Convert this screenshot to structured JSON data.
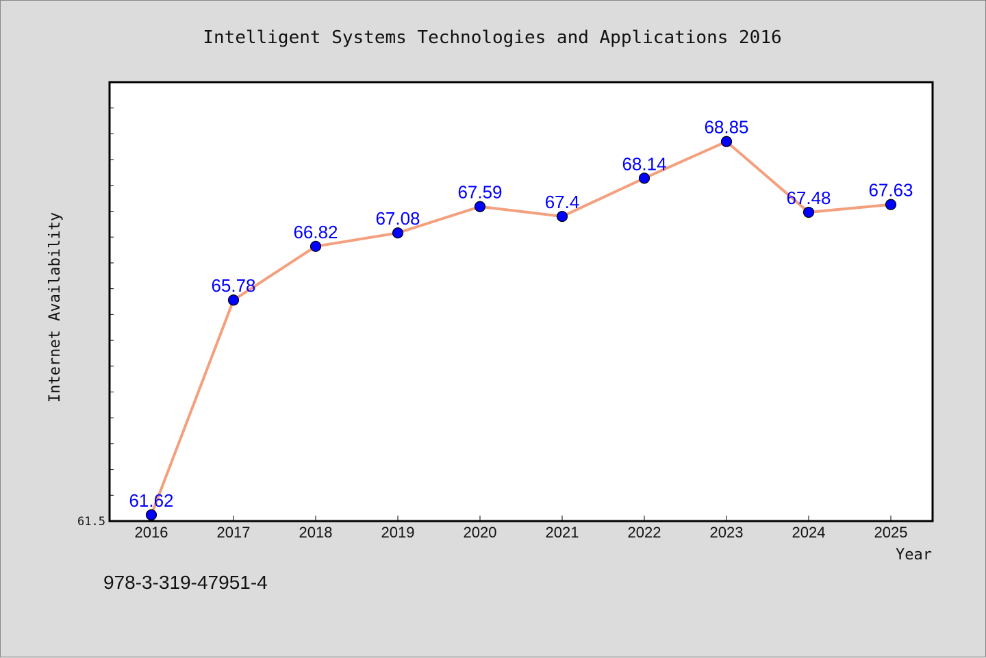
{
  "chart_data": {
    "type": "line",
    "title": "Intelligent Systems Technologies and Applications 2016",
    "xlabel": "Year",
    "ylabel": "Internet Availability",
    "categories": [
      "2016",
      "2017",
      "2018",
      "2019",
      "2020",
      "2021",
      "2022",
      "2023",
      "2024",
      "2025"
    ],
    "series": [
      {
        "values": [
          61.62,
          65.78,
          66.82,
          67.08,
          67.59,
          67.4,
          68.14,
          68.85,
          67.48,
          67.63
        ],
        "data_labels": [
          "61.62",
          "65.78",
          "66.82",
          "67.08",
          "67.59",
          "67.4",
          "68.14",
          "68.85",
          "67.48",
          "67.63"
        ]
      }
    ],
    "ytick_labels": [
      "61.5"
    ],
    "ylim": [
      61.5,
      70.0
    ],
    "grid": false,
    "colors": {
      "line": "#f4a07e",
      "marker": "#0000ff",
      "data_label": "#0000ff",
      "background": "#dcdcdc",
      "plot_area": "#ffffff"
    }
  },
  "footnote": "978-3-319-47951-4"
}
